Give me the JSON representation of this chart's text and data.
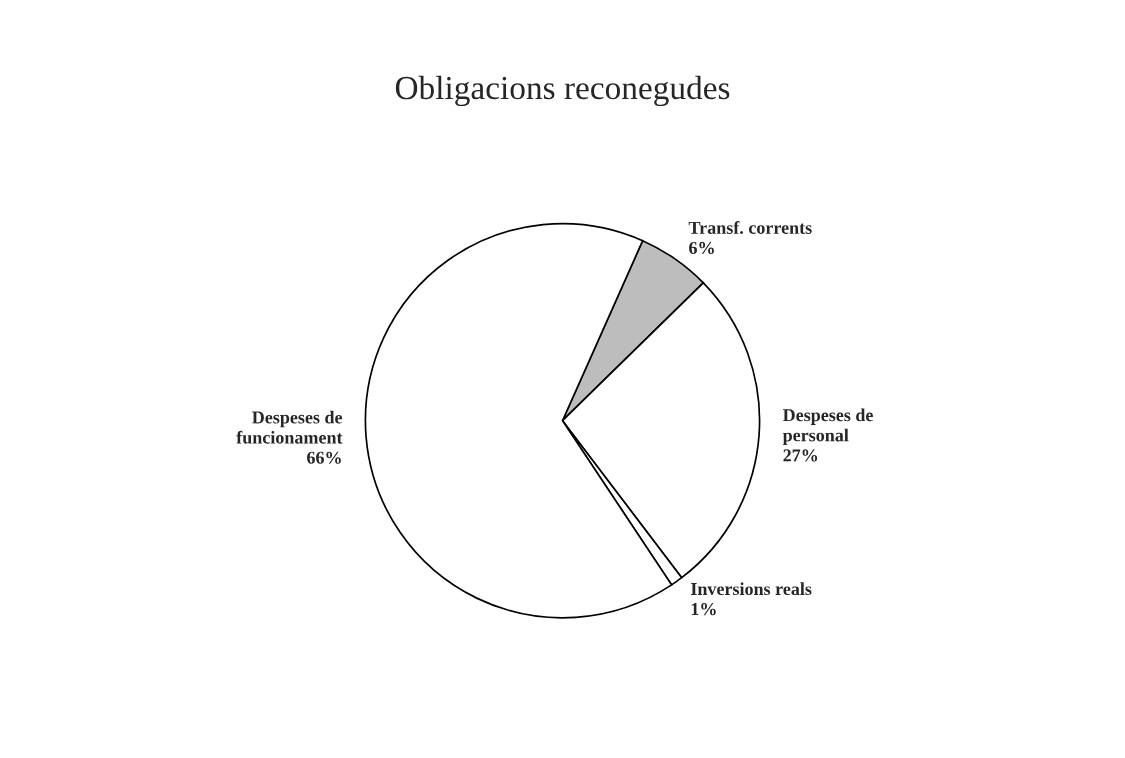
{
  "chart_data": {
    "type": "pie",
    "title": "Obligacions reconegudes",
    "categories": [
      "Transf. corrents",
      "Despeses de\npersonal",
      "Inversions reals",
      "Despeses de\nfuncionament"
    ],
    "values": [
      6,
      27,
      1,
      66
    ],
    "value_labels": [
      "6%",
      "27%",
      "1%",
      "66%"
    ],
    "colors": [
      "#bdbdbd",
      "#ffffff",
      "#ffffff",
      "#ffffff"
    ],
    "legend": false
  }
}
